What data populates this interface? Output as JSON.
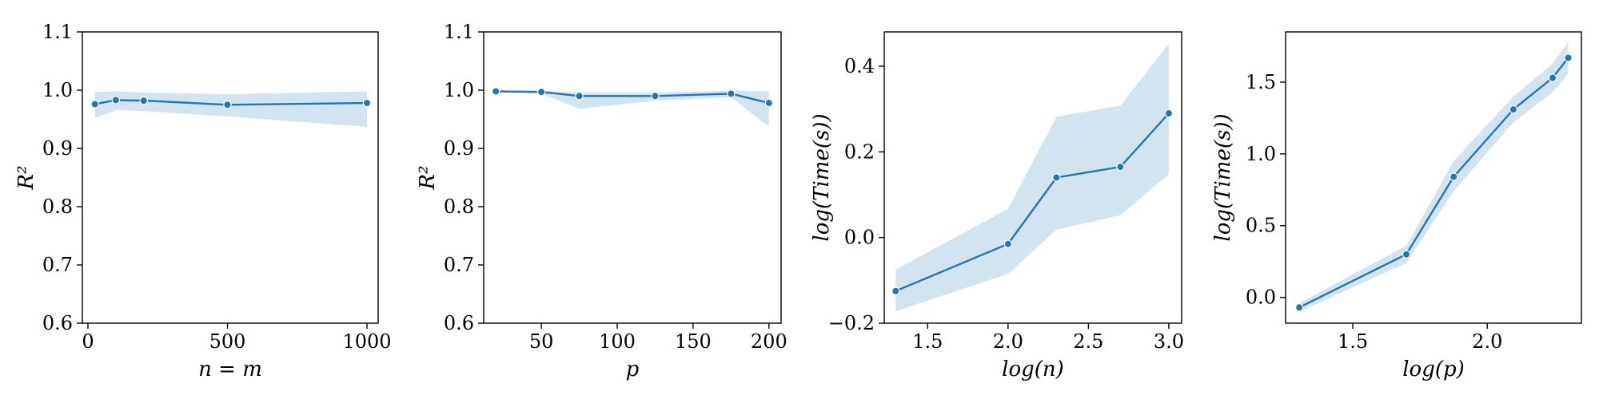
{
  "colors": {
    "line": "#1f77b4",
    "band": "#1f77b4",
    "frame": "#000000"
  },
  "chart_data": [
    {
      "type": "line",
      "xlabel": "n = m",
      "ylabel": "R²",
      "xlim": [
        -20,
        1040
      ],
      "ylim": [
        0.6,
        1.1
      ],
      "xticks": [
        0,
        500,
        1000
      ],
      "xtick_labels": [
        "0",
        "500",
        "1000"
      ],
      "yticks": [
        0.6,
        0.7,
        0.8,
        0.9,
        1.0,
        1.1
      ],
      "ytick_labels": [
        "0.6",
        "0.7",
        "0.8",
        "0.9",
        "1.0",
        "1.1"
      ],
      "grid": false,
      "x": [
        25,
        100,
        200,
        500,
        1000
      ],
      "y": [
        0.976,
        0.983,
        0.982,
        0.975,
        0.978
      ],
      "band_upper": [
        0.997,
        0.998,
        0.996,
        0.993,
        0.998
      ],
      "band_lower": [
        0.952,
        0.966,
        0.964,
        0.955,
        0.937
      ]
    },
    {
      "type": "line",
      "xlabel": "p",
      "ylabel": "R²",
      "xlim": [
        12,
        208
      ],
      "ylim": [
        0.6,
        1.1
      ],
      "xticks": [
        50,
        100,
        150,
        200
      ],
      "xtick_labels": [
        "50",
        "100",
        "150",
        "200"
      ],
      "yticks": [
        0.6,
        0.7,
        0.8,
        0.9,
        1.0,
        1.1
      ],
      "ytick_labels": [
        "0.6",
        "0.7",
        "0.8",
        "0.9",
        "1.0",
        "1.1"
      ],
      "grid": false,
      "x": [
        20,
        50,
        75,
        125,
        175,
        200
      ],
      "y": [
        0.998,
        0.997,
        0.99,
        0.99,
        0.994,
        0.978
      ],
      "band_upper": [
        0.999,
        0.999,
        0.996,
        0.996,
        0.999,
        0.998
      ],
      "band_lower": [
        0.996,
        0.994,
        0.968,
        0.982,
        0.988,
        0.937
      ]
    },
    {
      "type": "line",
      "xlabel": "log(n)",
      "ylabel": "log(Time(s))",
      "xlim": [
        1.23,
        3.08
      ],
      "ylim": [
        -0.2,
        0.48
      ],
      "xticks": [
        1.5,
        2.0,
        2.5,
        3.0
      ],
      "xtick_labels": [
        "1.5",
        "2.0",
        "2.5",
        "3.0"
      ],
      "yticks": [
        -0.2,
        0.0,
        0.2,
        0.4
      ],
      "ytick_labels": [
        "−0.2",
        "0.0",
        "0.2",
        "0.4"
      ],
      "grid": false,
      "x": [
        1.301,
        2.0,
        2.301,
        2.699,
        3.0
      ],
      "y": [
        -0.125,
        -0.015,
        0.14,
        0.165,
        0.29
      ],
      "band_upper": [
        -0.075,
        0.067,
        0.282,
        0.308,
        0.452
      ],
      "band_lower": [
        -0.172,
        -0.085,
        0.018,
        0.052,
        0.148
      ]
    },
    {
      "type": "line",
      "xlabel": "log(p)",
      "ylabel": "log(Time(s))",
      "xlim": [
        1.25,
        2.35
      ],
      "ylim": [
        -0.18,
        1.85
      ],
      "xticks": [
        1.5,
        2.0
      ],
      "xtick_labels": [
        "1.5",
        "2.0"
      ],
      "yticks": [
        0.0,
        0.5,
        1.0,
        1.5
      ],
      "ytick_labels": [
        "0.0",
        "0.5",
        "1.0",
        "1.5"
      ],
      "grid": false,
      "x": [
        1.301,
        1.699,
        1.875,
        2.097,
        2.243,
        2.301
      ],
      "y": [
        -0.07,
        0.3,
        0.84,
        1.31,
        1.53,
        1.67
      ],
      "band_upper": [
        -0.04,
        0.36,
        0.95,
        1.4,
        1.63,
        1.78
      ],
      "band_lower": [
        -0.1,
        0.24,
        0.74,
        1.22,
        1.43,
        1.56
      ]
    }
  ]
}
